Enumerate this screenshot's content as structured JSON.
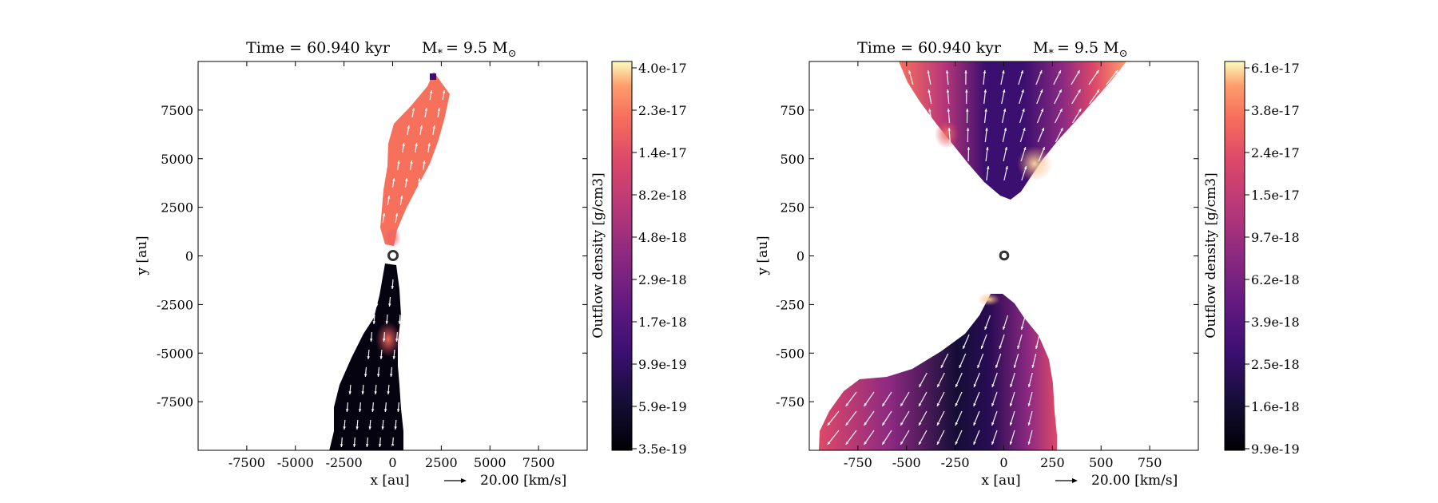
{
  "chart_data": [
    {
      "type": "heatmap",
      "title_time": "Time = 60.940 kyr",
      "title_mass": "M",
      "title_mass_sub": "*",
      "title_mass_value": "= 9.5 M",
      "title_mass_sun": "⊙",
      "xlabel": "x [au]",
      "ylabel": "y [au]",
      "xlim": [
        -10000,
        10000
      ],
      "ylim": [
        -10000,
        10000
      ],
      "xticks": [
        -7500,
        -5000,
        -2500,
        0,
        2500,
        5000,
        7500
      ],
      "yticks": [
        -7500,
        -5000,
        -2500,
        0,
        2500,
        5000,
        7500
      ],
      "xtick_labels": [
        "-7500",
        "-5000",
        "-2500",
        "0",
        "2500",
        "5000",
        "7500"
      ],
      "ytick_labels": [
        "-7500",
        "-5000",
        "-2500",
        "0",
        "2500",
        "5000",
        "7500"
      ],
      "vector_key": "20.00 [km/s]",
      "colorbar": {
        "label": "Outflow density [g/cm3]",
        "ticks": [
          "3.5e-19",
          "5.9e-19",
          "9.9e-19",
          "1.7e-18",
          "2.9e-18",
          "4.8e-18",
          "8.2e-18",
          "1.4e-17",
          "2.3e-17",
          "4.0e-17"
        ],
        "colormap": "magma"
      },
      "star_position": [
        0,
        0
      ]
    },
    {
      "type": "heatmap",
      "title_time": "Time = 60.940 kyr",
      "title_mass": "M",
      "title_mass_sub": "*",
      "title_mass_value": "= 9.5 M",
      "title_mass_sun": "⊙",
      "xlabel": "x [au]",
      "ylabel": "y [au]",
      "xlim": [
        -1000,
        1000
      ],
      "ylim": [
        -1000,
        1000
      ],
      "xticks": [
        -750,
        -500,
        -250,
        0,
        250,
        500,
        750
      ],
      "yticks": [
        -750,
        -500,
        -250,
        0,
        250,
        500,
        750
      ],
      "xtick_labels": [
        "-750",
        "-500",
        "-250",
        "0",
        "250",
        "500",
        "750"
      ],
      "ytick_labels": [
        "-750",
        "-500",
        "-250",
        "0",
        "250",
        "500",
        "750"
      ],
      "vector_key": "20.00 [km/s]",
      "colorbar": {
        "label": "Outflow density [g/cm3]",
        "ticks": [
          "9.9e-19",
          "1.6e-18",
          "2.5e-18",
          "3.9e-18",
          "6.2e-18",
          "9.7e-18",
          "1.5e-17",
          "2.4e-17",
          "3.8e-17",
          "6.1e-17"
        ],
        "colormap": "magma"
      },
      "star_position": [
        0,
        0
      ]
    }
  ]
}
